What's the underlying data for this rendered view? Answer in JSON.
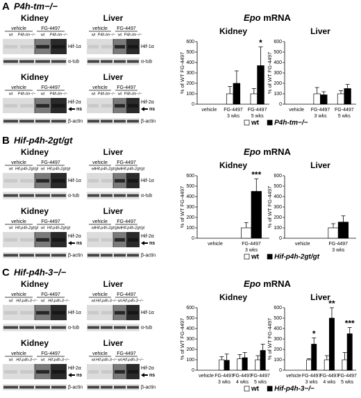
{
  "panels": [
    {
      "letter": "A",
      "title": "P4h-tm−/−",
      "epo": "Epo",
      "mrna": "mRNA",
      "blots": [
        {
          "tissue": "Kidney",
          "groups": [
            "vehicle",
            "FG-4497"
          ],
          "lanes": [
            "wt",
            "P4h-tm−/−",
            "wt",
            "P4h-tm−/−"
          ],
          "bands": [
            "Hif-1α",
            "α-tub"
          ]
        },
        {
          "tissue": "Liver",
          "groups": [
            "vehicle",
            "FG-4497"
          ],
          "lanes": [
            "wt",
            "P4h-tm−/−",
            "wt",
            "P4h-tm−/−"
          ],
          "bands": [
            "Hif-1α",
            "α-tub"
          ]
        },
        {
          "tissue": "Kidney",
          "groups": [
            "vehicle",
            "FG-4497"
          ],
          "lanes": [
            "wt",
            "P4h-tm−/−",
            "wt",
            "P4h-tm−/−"
          ],
          "bands": [
            "Hif-2α",
            "ns",
            "β-actin"
          ]
        },
        {
          "tissue": "Liver",
          "groups": [
            "vehicle",
            "FG-4497"
          ],
          "lanes": [
            "wt",
            "P4h-tm−/−",
            "wt",
            "P4h-tm−/−"
          ],
          "bands": [
            "Hif-2α",
            "ns",
            "β-actin"
          ]
        }
      ]
    },
    {
      "letter": "B",
      "title": "Hif-p4h-2gt/gt",
      "epo": "Epo",
      "mrna": "mRNA",
      "blots": [
        {
          "tissue": "Kidney",
          "groups": [
            "vehicle",
            "FG-4497"
          ],
          "lanes": [
            "wt",
            "Hif-p4h-2gt/gt",
            "wt",
            "Hif-p4h-2gt/gt"
          ],
          "bands": [
            "Hif-1α",
            "α-tub"
          ]
        },
        {
          "tissue": "Liver",
          "groups": [
            "vehicle",
            "FG-4497"
          ],
          "lanes": [
            "wt",
            "Hif-p4h-2gt/gt",
            "wt",
            "Hif-p4h-2gt/gt"
          ],
          "bands": [
            "Hif-1α",
            "α-tub"
          ]
        },
        {
          "tissue": "Kidney",
          "groups": [
            "vehicle",
            "FG-4497"
          ],
          "lanes": [
            "wt",
            "Hif-p4h-2gt/gt",
            "wt",
            "Hif-p4h-2gt/gt"
          ],
          "bands": [
            "Hif-2α",
            "ns",
            "β-actin"
          ]
        },
        {
          "tissue": "Liver",
          "groups": [
            "vehicle",
            "FG-4497"
          ],
          "lanes": [
            "wt",
            "Hif-p4h-2gt/gt",
            "wt",
            "Hif-p4h-2gt/gt"
          ],
          "bands": [
            "Hif-2α",
            "ns",
            "β-actin"
          ]
        }
      ]
    },
    {
      "letter": "C",
      "title": "Hif-p4h-3−/−",
      "epo": "Epo",
      "mrna": "mRNA",
      "blots": [
        {
          "tissue": "Kidney",
          "groups": [
            "vehicle",
            "FG-4497"
          ],
          "lanes": [
            "wt",
            "Hif-p4h-3−/−",
            "wt",
            "Hif-p4h-3−/−"
          ],
          "bands": [
            "Hif-1α",
            "α-tub"
          ]
        },
        {
          "tissue": "Liver",
          "groups": [
            "vehicle",
            "FG-4497"
          ],
          "lanes": [
            "wt",
            "Hif-p4h-3−/−",
            "wt",
            "Hif-p4h-3−/−"
          ],
          "bands": [
            "Hif-1α",
            "α-tub"
          ]
        },
        {
          "tissue": "Kidney",
          "groups": [
            "vehicle",
            "FG-4497"
          ],
          "lanes": [
            "wt",
            "Hif-p4h-3−/−",
            "wt",
            "Hif-p4h-3−/−"
          ],
          "bands": [
            "Hif-2α",
            "ns",
            "β-actin"
          ]
        },
        {
          "tissue": "Liver",
          "groups": [
            "vehicle",
            "FG-4497"
          ],
          "lanes": [
            "wt",
            "Hif-p4h-3−/−",
            "wt",
            "Hif-p4h-3−/−"
          ],
          "bands": [
            "Hif-2α",
            "ns",
            "β-actin"
          ]
        }
      ]
    }
  ],
  "chart_data": [
    {
      "type": "bar",
      "title": "Kidney",
      "y_label": "% of WT FG-4497",
      "categories": [
        "vehicle",
        "FG-4497 3 wks",
        "FG-4497 5 wks"
      ],
      "ylim": [
        0,
        600
      ],
      "yticks": [
        0,
        100,
        200,
        300,
        400,
        500,
        600
      ],
      "series": [
        {
          "name": "wt",
          "color": "#ffffff",
          "values": [
            0,
            100,
            100
          ],
          "errors": [
            0,
            70,
            50
          ]
        },
        {
          "name": "P4h-tm−/−",
          "color": "#000000",
          "values": [
            0,
            200,
            370
          ],
          "errors": [
            0,
            120,
            180
          ],
          "significance": [
            null,
            null,
            "*"
          ]
        }
      ]
    },
    {
      "type": "bar",
      "title": "Liver",
      "y_label": "% of WT FG-4497",
      "categories": [
        "vehicle",
        "FG-4497 3 wks",
        "FG-4497 5 wks"
      ],
      "ylim": [
        0,
        600
      ],
      "yticks": [
        0,
        100,
        200,
        300,
        400,
        500,
        600
      ],
      "series": [
        {
          "name": "wt",
          "color": "#ffffff",
          "values": [
            0,
            100,
            100
          ],
          "errors": [
            0,
            60,
            30
          ]
        },
        {
          "name": "P4h-tm−/−",
          "color": "#000000",
          "values": [
            0,
            90,
            150
          ],
          "errors": [
            0,
            30,
            40
          ]
        }
      ]
    },
    {
      "type": "bar",
      "title": "Kidney",
      "y_label": "% of WT FG-4497",
      "categories": [
        "vehicle",
        "FG-4497 3 wks"
      ],
      "ylim": [
        0,
        600
      ],
      "yticks": [
        0,
        100,
        200,
        300,
        400,
        500,
        600
      ],
      "series": [
        {
          "name": "wt",
          "color": "#ffffff",
          "values": [
            0,
            100
          ],
          "errors": [
            0,
            50
          ]
        },
        {
          "name": "Hif-p4h-2gt/gt",
          "color": "#000000",
          "values": [
            0,
            450
          ],
          "errors": [
            0,
            120
          ],
          "significance": [
            null,
            "***"
          ]
        }
      ]
    },
    {
      "type": "bar",
      "title": "Liver",
      "y_label": "% of WT FG-4497",
      "categories": [
        "vehicle",
        "FG-4497 3 wks"
      ],
      "ylim": [
        0,
        600
      ],
      "yticks": [
        0,
        100,
        200,
        300,
        400,
        500,
        600
      ],
      "series": [
        {
          "name": "wt",
          "color": "#ffffff",
          "values": [
            0,
            100
          ],
          "errors": [
            0,
            40
          ]
        },
        {
          "name": "Hif-p4h-2gt/gt",
          "color": "#000000",
          "values": [
            0,
            155
          ],
          "errors": [
            0,
            60
          ]
        }
      ]
    },
    {
      "type": "bar",
      "title": "Kidney",
      "y_label": "% of WT FG-4497",
      "categories": [
        "vehicle",
        "FG-4497 3 wks",
        "FG-4497 4 wks",
        "FG-4497 5 wks"
      ],
      "ylim": [
        0,
        600
      ],
      "yticks": [
        0,
        100,
        200,
        300,
        400,
        500,
        600
      ],
      "series": [
        {
          "name": "wt",
          "color": "#ffffff",
          "values": [
            0,
            100,
            110,
            100
          ],
          "errors": [
            0,
            30,
            40,
            40
          ]
        },
        {
          "name": "Hif-p4h-3−/−",
          "color": "#000000",
          "values": [
            0,
            95,
            120,
            190
          ],
          "errors": [
            0,
            60,
            50,
            60
          ]
        }
      ]
    },
    {
      "type": "bar",
      "title": "Liver",
      "y_label": "% of WT FG-4497",
      "categories": [
        "vehicle",
        "FG-4497 3 wks",
        "FG-4497 4 wks",
        "FG-4497 5 wks"
      ],
      "ylim": [
        0,
        600
      ],
      "yticks": [
        0,
        100,
        200,
        300,
        400,
        500,
        600
      ],
      "series": [
        {
          "name": "wt",
          "color": "#ffffff",
          "values": [
            0,
            100,
            100,
            100
          ],
          "errors": [
            0,
            10,
            40,
            70
          ]
        },
        {
          "name": "Hif-p4h-3−/−",
          "color": "#000000",
          "values": [
            0,
            250,
            500,
            350
          ],
          "errors": [
            0,
            60,
            100,
            60
          ],
          "significance": [
            null,
            "*",
            "**",
            "***"
          ]
        }
      ]
    }
  ]
}
